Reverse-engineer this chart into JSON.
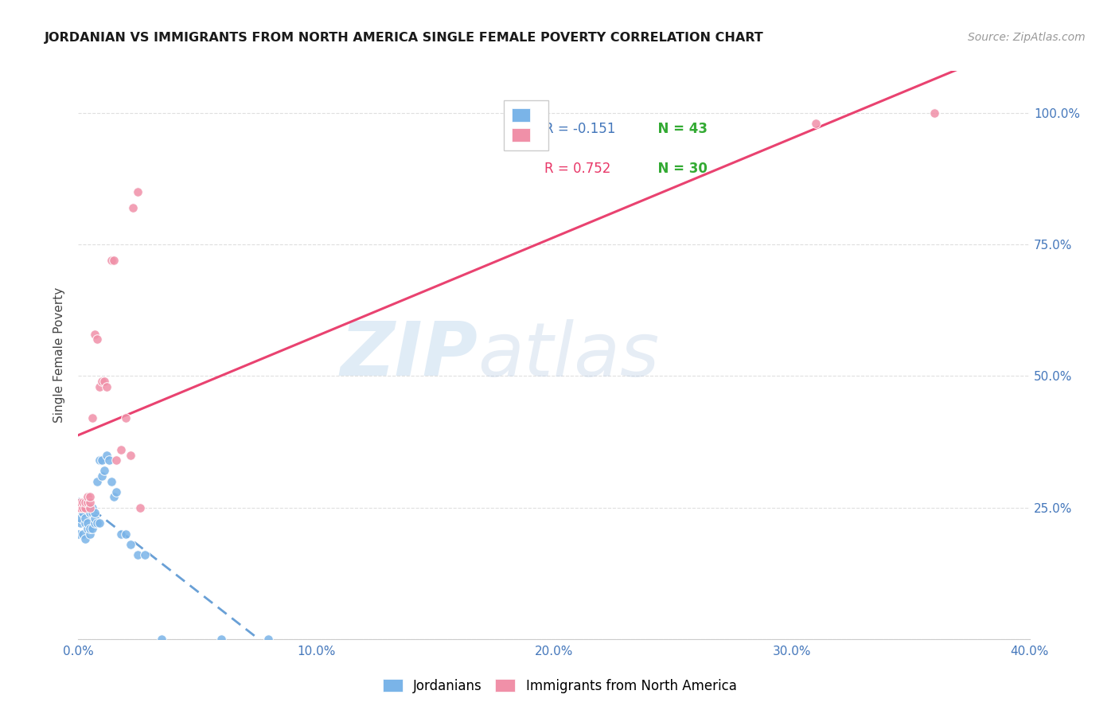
{
  "title": "JORDANIAN VS IMMIGRANTS FROM NORTH AMERICA SINGLE FEMALE POVERTY CORRELATION CHART",
  "source": "Source: ZipAtlas.com",
  "ylabel": "Single Female Poverty",
  "watermark_zip": "ZIP",
  "watermark_atlas": "atlas",
  "jordanian_color": "#7ab4e8",
  "immigrant_color": "#f090a8",
  "trend_jordanian_color": "#4488cc",
  "trend_immigrant_color": "#e83868",
  "background_color": "#ffffff",
  "grid_color": "#d8d8d8",
  "xlim": [
    0.0,
    0.4
  ],
  "ylim": [
    0.0,
    1.08
  ],
  "xticks": [
    0.0,
    0.1,
    0.2,
    0.3,
    0.4
  ],
  "yticks": [
    0.0,
    0.25,
    0.5,
    0.75,
    1.0
  ],
  "xtick_labels": [
    "0.0%",
    "10.0%",
    "20.0%",
    "30.0%",
    "40.0%"
  ],
  "ytick_labels_right": [
    "",
    "25.0%",
    "50.0%",
    "75.0%",
    "100.0%"
  ],
  "tick_color": "#4477bb",
  "jordanian_x": [
    0.0,
    0.001,
    0.001,
    0.002,
    0.002,
    0.002,
    0.003,
    0.003,
    0.003,
    0.003,
    0.004,
    0.004,
    0.004,
    0.005,
    0.005,
    0.005,
    0.005,
    0.006,
    0.006,
    0.006,
    0.007,
    0.007,
    0.007,
    0.008,
    0.008,
    0.009,
    0.009,
    0.01,
    0.01,
    0.011,
    0.012,
    0.013,
    0.014,
    0.015,
    0.016,
    0.018,
    0.02,
    0.022,
    0.025,
    0.028,
    0.035,
    0.06,
    0.08
  ],
  "jordanian_y": [
    0.2,
    0.22,
    0.23,
    0.2,
    0.24,
    0.24,
    0.19,
    0.22,
    0.23,
    0.25,
    0.21,
    0.22,
    0.26,
    0.2,
    0.21,
    0.24,
    0.24,
    0.21,
    0.24,
    0.25,
    0.22,
    0.23,
    0.24,
    0.22,
    0.3,
    0.22,
    0.34,
    0.31,
    0.34,
    0.32,
    0.35,
    0.34,
    0.3,
    0.27,
    0.28,
    0.2,
    0.2,
    0.18,
    0.16,
    0.16,
    0.0,
    0.0,
    0.0
  ],
  "immigrant_x": [
    0.0,
    0.001,
    0.001,
    0.002,
    0.002,
    0.003,
    0.003,
    0.004,
    0.004,
    0.005,
    0.005,
    0.005,
    0.006,
    0.007,
    0.008,
    0.009,
    0.01,
    0.011,
    0.012,
    0.014,
    0.015,
    0.016,
    0.018,
    0.02,
    0.022,
    0.023,
    0.025,
    0.026,
    0.31,
    0.36
  ],
  "immigrant_y": [
    0.25,
    0.25,
    0.26,
    0.25,
    0.26,
    0.25,
    0.26,
    0.26,
    0.27,
    0.25,
    0.26,
    0.27,
    0.42,
    0.58,
    0.57,
    0.48,
    0.49,
    0.49,
    0.48,
    0.72,
    0.72,
    0.34,
    0.36,
    0.42,
    0.35,
    0.82,
    0.85,
    0.25,
    0.98,
    1.0
  ],
  "legend1_label_r": "R = -0.151",
  "legend1_label_n": "N = 43",
  "legend2_label_r": "R = 0.752",
  "legend2_label_n": "N = 30",
  "legend_r_color1": "#4477bb",
  "legend_r_color2": "#e83868",
  "legend_n_color": "#33aa33",
  "bottom_legend_labels": [
    "Jordanians",
    "Immigrants from North America"
  ]
}
